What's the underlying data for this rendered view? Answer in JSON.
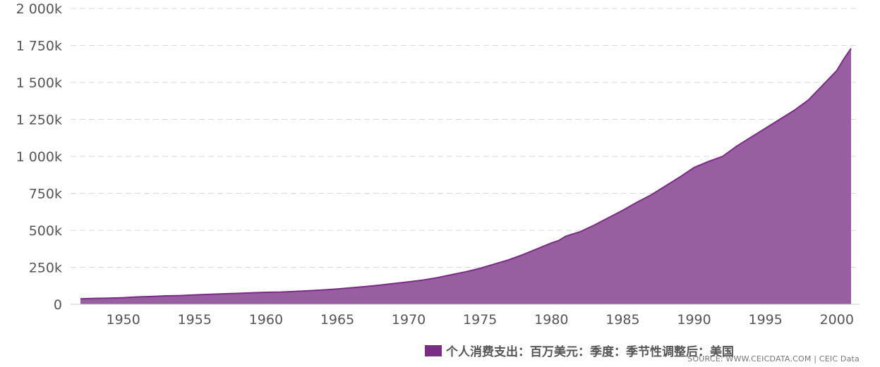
{
  "chart_data": {
    "type": "area",
    "color": "#7b2d86",
    "fill_color": "#975fa0",
    "grid": true,
    "legend_position": "bottom-center",
    "y_ticks": [
      "0",
      "250k",
      "500k",
      "750k",
      "1 000k",
      "1 250k",
      "1 500k",
      "1 750k",
      "2 000k"
    ],
    "y_tick_values": [
      0,
      250000,
      500000,
      750000,
      1000000,
      1250000,
      1500000,
      1750000,
      2000000
    ],
    "x_ticks": [
      "1950",
      "1955",
      "1960",
      "1965",
      "1970",
      "1975",
      "1980",
      "1985",
      "1990",
      "1995",
      "2000"
    ],
    "x_tick_values": [
      1950,
      1955,
      1960,
      1965,
      1970,
      1975,
      1980,
      1985,
      1990,
      1995,
      2000
    ],
    "xlim": [
      1947,
      2001
    ],
    "ylim": [
      0,
      2000000
    ],
    "series": [
      {
        "name": "个人消费支出：百万美元：季度：季节性调整后：美国",
        "x": [
          1947.0,
          1948.0,
          1949.0,
          1950.0,
          1951.0,
          1952.0,
          1953.0,
          1954.0,
          1955.0,
          1956.0,
          1957.0,
          1958.0,
          1959.0,
          1960.0,
          1961.0,
          1962.0,
          1963.0,
          1964.0,
          1965.0,
          1966.0,
          1967.0,
          1968.0,
          1969.0,
          1970.0,
          1971.0,
          1972.0,
          1973.0,
          1974.0,
          1975.0,
          1976.0,
          1977.0,
          1978.0,
          1979.0,
          1980.0,
          1980.5,
          1981.0,
          1982.0,
          1983.0,
          1984.0,
          1985.0,
          1986.0,
          1987.0,
          1988.0,
          1989.0,
          1990.0,
          1991.0,
          1992.0,
          1993.0,
          1994.0,
          1995.0,
          1996.0,
          1997.0,
          1998.0,
          1999.0,
          2000.0,
          2000.5,
          2001.0
        ],
        "values": [
          37000,
          40000,
          42000,
          45000,
          50000,
          53000,
          57000,
          59000,
          64000,
          67000,
          71000,
          74000,
          78000,
          81000,
          83000,
          87000,
          92000,
          97000,
          104000,
          112000,
          120000,
          130000,
          141000,
          152000,
          164000,
          180000,
          200000,
          220000,
          243000,
          272000,
          300000,
          335000,
          375000,
          415000,
          430000,
          460000,
          490000,
          535000,
          585000,
          635000,
          690000,
          740000,
          800000,
          860000,
          925000,
          965000,
          1000000,
          1070000,
          1130000,
          1190000,
          1250000,
          1310000,
          1380000,
          1480000,
          1580000,
          1660000,
          1730000
        ]
      }
    ],
    "source": "SOURCE: WWW.CEICDATA.COM | CEIC Data"
  }
}
